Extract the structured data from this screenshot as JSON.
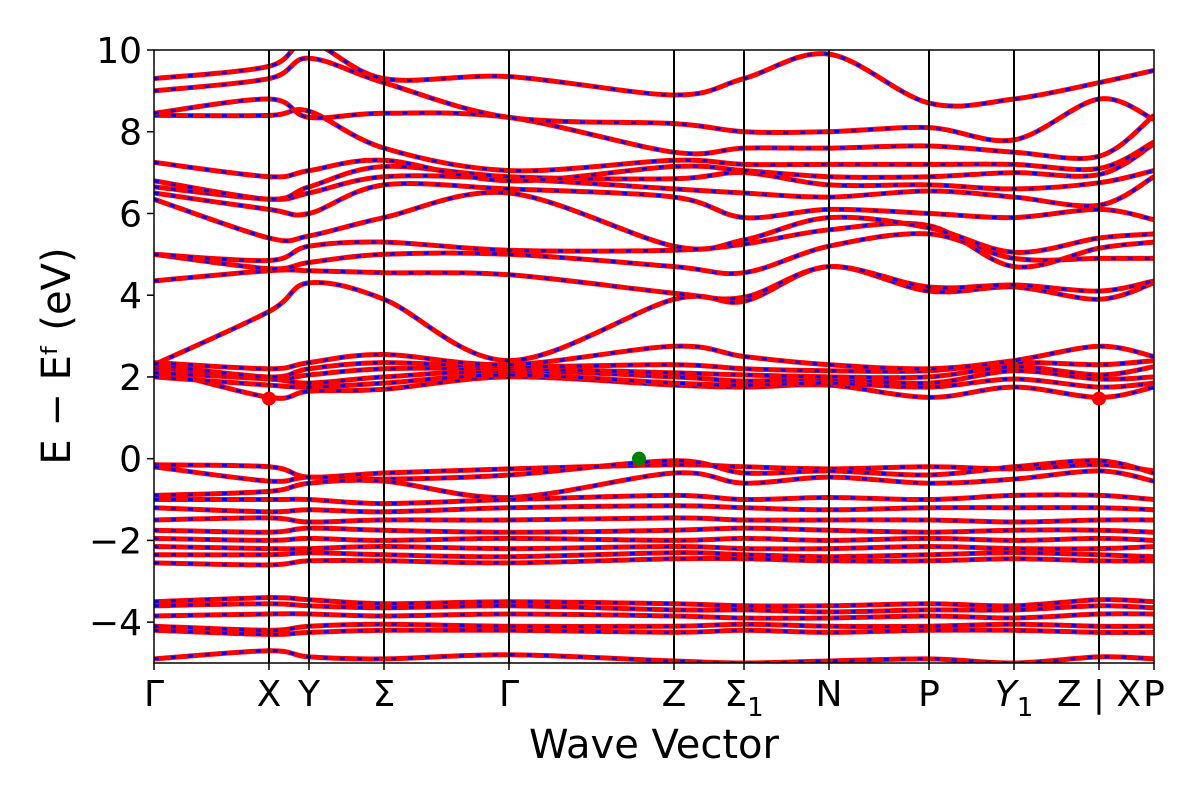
{
  "chart_data": {
    "type": "line",
    "title": "",
    "xlabel": "Wave Vector",
    "ylabel": "E − Eᶠ (eV)",
    "ylim": [
      -5,
      10
    ],
    "yticks": [
      -4,
      -2,
      0,
      2,
      4,
      6,
      8,
      10
    ],
    "ytick_labels": [
      "−4",
      "−2",
      "0",
      "2",
      "4",
      "6",
      "8",
      "10"
    ],
    "xlim": [
      0,
      10
    ],
    "kpath_positions": [
      0,
      1.15,
      1.55,
      2.3,
      3.55,
      5.2,
      5.9,
      6.75,
      7.75,
      8.6,
      9.45,
      10.0
    ],
    "kpath_labels": [
      "Γ",
      "X",
      "Y",
      "Σ",
      "Γ",
      "Z",
      "Σ1",
      "N",
      "P",
      "Y1",
      "Z | X",
      "P"
    ],
    "colors": {
      "band_main": "#ff0000",
      "band_overlay": "#0000ff",
      "vbm_marker": "#008000",
      "cbm_marker": "#ff0000"
    },
    "markers": [
      {
        "name": "CBM",
        "x": 1.15,
        "y": 1.47,
        "color": "#ff0000"
      },
      {
        "name": "CBM",
        "x": 9.45,
        "y": 1.47,
        "color": "#ff0000"
      },
      {
        "name": "VBM",
        "x": 4.85,
        "y": 0.0,
        "color": "#008000"
      }
    ],
    "series": [
      {
        "values": [
          -0.15,
          -0.2,
          -0.45,
          -0.35,
          -0.25,
          -0.15,
          -0.2,
          -0.25,
          -0.2,
          -0.25,
          -0.15,
          -0.3
        ]
      },
      {
        "values": [
          -0.2,
          -0.55,
          -0.45,
          -0.5,
          -0.4,
          -0.05,
          -0.35,
          -0.3,
          -0.4,
          -0.2,
          -0.05,
          -0.35
        ]
      },
      {
        "values": [
          -0.9,
          -0.8,
          -0.6,
          -0.55,
          -0.95,
          -0.35,
          -0.6,
          -0.45,
          -0.6,
          -0.5,
          -0.3,
          -0.55
        ]
      },
      {
        "values": [
          -1.0,
          -1.0,
          -1.0,
          -1.1,
          -1.0,
          -0.9,
          -1.0,
          -0.95,
          -1.0,
          -0.9,
          -0.9,
          -1.0
        ]
      },
      {
        "values": [
          -1.2,
          -1.3,
          -1.25,
          -1.3,
          -1.2,
          -1.15,
          -1.2,
          -1.25,
          -1.2,
          -1.2,
          -1.2,
          -1.25
        ]
      },
      {
        "values": [
          -1.5,
          -1.45,
          -1.55,
          -1.5,
          -1.5,
          -1.45,
          -1.5,
          -1.5,
          -1.5,
          -1.55,
          -1.5,
          -1.5
        ]
      },
      {
        "values": [
          -1.75,
          -1.8,
          -1.7,
          -1.75,
          -1.8,
          -1.75,
          -1.7,
          -1.75,
          -1.8,
          -1.75,
          -1.75,
          -1.8
        ]
      },
      {
        "values": [
          -1.95,
          -2.0,
          -1.95,
          -2.0,
          -1.95,
          -2.0,
          -1.95,
          -2.0,
          -1.95,
          -2.0,
          -1.95,
          -2.0
        ]
      },
      {
        "values": [
          -2.15,
          -2.2,
          -2.2,
          -2.15,
          -2.2,
          -2.15,
          -2.2,
          -2.2,
          -2.15,
          -2.2,
          -2.2,
          -2.15
        ]
      },
      {
        "values": [
          -2.35,
          -2.35,
          -2.3,
          -2.35,
          -2.4,
          -2.3,
          -2.35,
          -2.4,
          -2.35,
          -2.3,
          -2.35,
          -2.4
        ]
      },
      {
        "values": [
          -2.55,
          -2.6,
          -2.5,
          -2.5,
          -2.55,
          -2.45,
          -2.45,
          -2.5,
          -2.5,
          -2.45,
          -2.5,
          -2.5
        ]
      },
      {
        "values": [
          -3.5,
          -3.4,
          -3.45,
          -3.55,
          -3.5,
          -3.55,
          -3.6,
          -3.6,
          -3.55,
          -3.6,
          -3.45,
          -3.5
        ]
      },
      {
        "values": [
          -3.6,
          -3.55,
          -3.6,
          -3.65,
          -3.6,
          -3.7,
          -3.7,
          -3.75,
          -3.7,
          -3.7,
          -3.6,
          -3.65
        ]
      },
      {
        "values": [
          -3.85,
          -3.8,
          -3.8,
          -3.85,
          -3.8,
          -3.85,
          -3.9,
          -3.9,
          -3.85,
          -3.9,
          -3.8,
          -3.8
        ]
      },
      {
        "values": [
          -4.1,
          -4.2,
          -4.1,
          -4.05,
          -4.1,
          -4.1,
          -4.05,
          -4.1,
          -4.1,
          -4.05,
          -4.1,
          -4.1
        ]
      },
      {
        "values": [
          -4.2,
          -4.3,
          -4.25,
          -4.2,
          -4.2,
          -4.25,
          -4.2,
          -4.25,
          -4.2,
          -4.2,
          -4.25,
          -4.25
        ]
      },
      {
        "values": [
          -4.9,
          -4.7,
          -4.85,
          -4.9,
          -4.8,
          -4.95,
          -5.0,
          -4.95,
          -4.9,
          -5.0,
          -4.85,
          -4.9
        ]
      },
      {
        "values": [
          2.2,
          1.5,
          1.65,
          1.7,
          2.0,
          1.8,
          1.75,
          1.8,
          1.5,
          1.75,
          1.5,
          1.75
        ]
      },
      {
        "values": [
          2.0,
          1.8,
          1.75,
          1.85,
          2.05,
          1.85,
          1.8,
          1.85,
          1.75,
          1.95,
          1.75,
          1.85
        ]
      },
      {
        "values": [
          2.1,
          1.95,
          1.85,
          2.0,
          2.15,
          2.0,
          1.9,
          1.95,
          1.85,
          2.15,
          1.95,
          2.0
        ]
      },
      {
        "values": [
          2.25,
          1.95,
          2.05,
          2.2,
          2.2,
          2.1,
          2.05,
          2.0,
          2.0,
          2.25,
          2.05,
          2.25
        ]
      },
      {
        "values": [
          2.3,
          2.0,
          2.2,
          2.35,
          2.25,
          2.3,
          2.2,
          2.15,
          2.15,
          2.35,
          2.3,
          2.4
        ]
      },
      {
        "values": [
          2.35,
          2.2,
          2.35,
          2.55,
          2.3,
          2.75,
          2.5,
          2.3,
          2.2,
          2.4,
          2.75,
          2.5
        ]
      },
      {
        "values": [
          2.3,
          3.6,
          4.3,
          3.9,
          2.4,
          3.9,
          3.85,
          4.7,
          4.1,
          4.2,
          3.9,
          4.3
        ]
      },
      {
        "values": [
          4.35,
          4.6,
          4.6,
          4.55,
          4.5,
          4.05,
          3.95,
          4.7,
          4.2,
          4.25,
          4.1,
          4.35
        ]
      },
      {
        "values": [
          5.0,
          4.65,
          4.8,
          5.0,
          5.0,
          4.7,
          4.55,
          5.2,
          5.5,
          4.9,
          4.9,
          4.9
        ]
      },
      {
        "values": [
          5.0,
          4.85,
          5.2,
          5.3,
          5.1,
          5.1,
          5.25,
          5.6,
          5.7,
          4.7,
          5.15,
          5.3
        ]
      },
      {
        "values": [
          6.35,
          5.4,
          5.45,
          5.9,
          6.5,
          5.2,
          5.35,
          5.9,
          5.65,
          5.05,
          5.4,
          5.5
        ]
      },
      {
        "values": [
          6.5,
          6.1,
          6.0,
          6.7,
          6.6,
          6.4,
          5.9,
          6.1,
          6.0,
          5.9,
          6.1,
          5.85
        ]
      },
      {
        "values": [
          6.65,
          6.35,
          6.5,
          6.9,
          6.85,
          6.6,
          6.5,
          6.4,
          6.55,
          6.4,
          6.2,
          6.9
        ]
      },
      {
        "values": [
          6.8,
          6.35,
          6.65,
          7.15,
          6.9,
          6.85,
          7.0,
          6.7,
          6.7,
          6.6,
          6.75,
          7.05
        ]
      },
      {
        "values": [
          7.25,
          6.9,
          7.05,
          7.3,
          6.8,
          7.15,
          7.05,
          6.9,
          6.9,
          7.0,
          6.95,
          7.7
        ]
      },
      {
        "values": [
          8.4,
          8.4,
          8.5,
          7.6,
          7.05,
          7.3,
          7.2,
          7.2,
          7.2,
          7.2,
          7.1,
          7.75
        ]
      },
      {
        "values": [
          8.45,
          8.8,
          8.35,
          8.45,
          8.35,
          7.5,
          7.6,
          7.6,
          7.65,
          7.5,
          7.4,
          8.4
        ]
      },
      {
        "values": [
          9.0,
          9.3,
          9.8,
          9.2,
          8.35,
          8.2,
          8.0,
          8.0,
          8.1,
          7.8,
          8.8,
          8.3
        ]
      },
      {
        "values": [
          9.3,
          9.6,
          10.2,
          9.3,
          9.35,
          8.9,
          9.3,
          9.9,
          8.7,
          8.8,
          9.2,
          9.5
        ]
      }
    ]
  }
}
